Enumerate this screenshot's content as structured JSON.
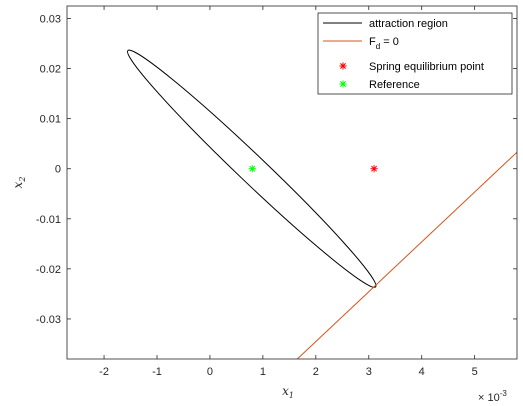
{
  "chart_data": {
    "type": "line",
    "title": "",
    "xlabel": "x",
    "xlabel_sub": "1",
    "ylabel": "x",
    "ylabel_sub": "2",
    "x_exponent_prefix": "× 10",
    "x_exponent_power": "-3",
    "xlim": [
      -0.0027,
      0.0058
    ],
    "ylim": [
      -0.038,
      0.0325
    ],
    "x_ticks": [
      -0.002,
      -0.001,
      0,
      0.001,
      0.002,
      0.003,
      0.004,
      0.005
    ],
    "x_tick_labels": [
      "-2",
      "-1",
      "0",
      "1",
      "2",
      "3",
      "4",
      "5"
    ],
    "y_ticks": [
      0.03,
      0.02,
      0.01,
      0,
      -0.01,
      -0.02,
      -0.03
    ],
    "y_tick_labels": [
      "0.03",
      "0.02",
      "0.01",
      "0",
      "-0.01",
      "-0.02",
      "-0.03"
    ],
    "grid": false,
    "legend_placement": "top-right",
    "series": [
      {
        "name": "attraction region",
        "kind": "ellipse",
        "color": "#000000",
        "center": [
          0.00079,
          0.0
        ],
        "vertices": [
          [
            -0.00155,
            0.0236
          ],
          [
            0.00313,
            -0.0236
          ]
        ],
        "minor_half_width": 0.00026
      },
      {
        "name": "F_d = 0",
        "legend_main": "F",
        "legend_sub": "d",
        "legend_rest": " = 0",
        "kind": "line",
        "color": "#d95319",
        "points": [
          [
            0.00165,
            -0.038
          ],
          [
            0.0058,
            0.0033
          ]
        ]
      },
      {
        "name": "Spring equilibrium point",
        "kind": "marker",
        "marker": "*",
        "color": "#ff0000",
        "points": [
          [
            0.0031,
            0.0
          ]
        ]
      },
      {
        "name": "Reference",
        "kind": "marker",
        "marker": "*",
        "color": "#00ff00",
        "points": [
          [
            0.0008,
            0.0
          ]
        ]
      }
    ]
  }
}
